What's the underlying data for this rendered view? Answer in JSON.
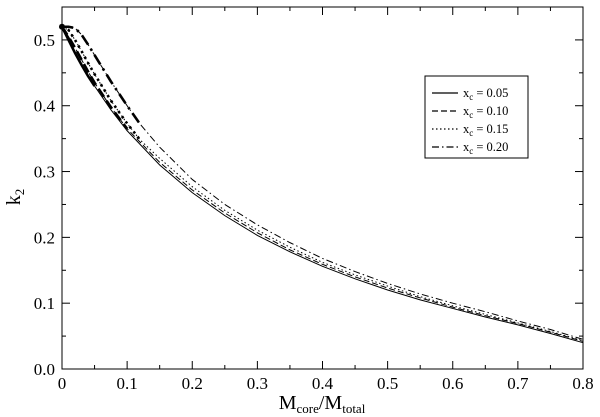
{
  "chart_data": {
    "type": "line",
    "xlabel": {
      "main": "M",
      "sub1": "core",
      "sep": "/M",
      "sub2": "total"
    },
    "ylabel": {
      "main": "k",
      "sub": "2"
    },
    "xlim": [
      0,
      0.8
    ],
    "ylim": [
      0,
      0.55
    ],
    "x_ticks": [
      "0",
      "0.1",
      "0.2",
      "0.3",
      "0.4",
      "0.5",
      "0.6",
      "0.7",
      "0.8"
    ],
    "y_ticks": [
      "0.0",
      "0.1",
      "0.2",
      "0.3",
      "0.4",
      "0.5"
    ],
    "grid": false,
    "legend": "right",
    "series": [
      {
        "name": {
          "main": "x",
          "sub": "c",
          "rest": " = 0.05"
        },
        "dash": "solid",
        "thick_end_x": 0.05,
        "x": [
          0,
          0.01,
          0.02,
          0.03,
          0.04,
          0.05,
          0.075,
          0.1,
          0.15,
          0.2,
          0.25,
          0.3,
          0.35,
          0.4,
          0.45,
          0.5,
          0.55,
          0.6,
          0.65,
          0.7,
          0.75,
          0.8
        ],
        "y": [
          0.52,
          0.5,
          0.48,
          0.462,
          0.445,
          0.43,
          0.394,
          0.362,
          0.31,
          0.268,
          0.233,
          0.203,
          0.178,
          0.156,
          0.137,
          0.12,
          0.105,
          0.092,
          0.079,
          0.067,
          0.054,
          0.04
        ]
      },
      {
        "name": {
          "main": "x",
          "sub": "c",
          "rest": " = 0.10"
        },
        "dash": "dashed",
        "thick_end_x": 0.1,
        "x": [
          0,
          0.01,
          0.02,
          0.03,
          0.04,
          0.05,
          0.075,
          0.1,
          0.15,
          0.2,
          0.25,
          0.3,
          0.35,
          0.4,
          0.45,
          0.5,
          0.55,
          0.6,
          0.65,
          0.7,
          0.75,
          0.8
        ],
        "y": [
          0.52,
          0.505,
          0.488,
          0.47,
          0.452,
          0.435,
          0.398,
          0.365,
          0.314,
          0.272,
          0.237,
          0.207,
          0.181,
          0.159,
          0.14,
          0.123,
          0.108,
          0.094,
          0.081,
          0.069,
          0.056,
          0.042
        ]
      },
      {
        "name": {
          "main": "x",
          "sub": "c",
          "rest": " = 0.15"
        },
        "dash": "dotted",
        "thick_end_x": 0.12,
        "x": [
          0,
          0.01,
          0.02,
          0.03,
          0.04,
          0.05,
          0.075,
          0.1,
          0.12,
          0.15,
          0.2,
          0.25,
          0.3,
          0.35,
          0.4,
          0.45,
          0.5,
          0.55,
          0.6,
          0.65,
          0.7,
          0.75,
          0.8
        ],
        "y": [
          0.52,
          0.515,
          0.5,
          0.483,
          0.465,
          0.448,
          0.408,
          0.373,
          0.348,
          0.32,
          0.277,
          0.241,
          0.211,
          0.185,
          0.162,
          0.143,
          0.126,
          0.11,
          0.096,
          0.083,
          0.07,
          0.057,
          0.043
        ]
      },
      {
        "name": {
          "main": "x",
          "sub": "c",
          "rest": " = 0.20"
        },
        "dash": "dashdot",
        "thick_end_x": 0.12,
        "x": [
          0,
          0.01,
          0.02,
          0.03,
          0.04,
          0.05,
          0.075,
          0.1,
          0.12,
          0.15,
          0.2,
          0.25,
          0.3,
          0.35,
          0.4,
          0.45,
          0.5,
          0.55,
          0.6,
          0.65,
          0.7,
          0.75,
          0.8
        ],
        "y": [
          0.52,
          0.52,
          0.518,
          0.508,
          0.493,
          0.477,
          0.437,
          0.4,
          0.372,
          0.337,
          0.288,
          0.25,
          0.219,
          0.192,
          0.168,
          0.148,
          0.13,
          0.114,
          0.1,
          0.087,
          0.073,
          0.06,
          0.045
        ]
      }
    ]
  }
}
